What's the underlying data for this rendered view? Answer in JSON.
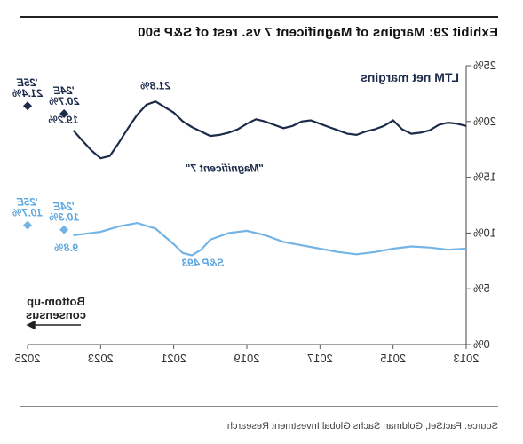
{
  "exhibit_title": "Exhibit 29: Margins of Magnificent 7 vs. rest of S&P 500",
  "chart": {
    "type": "line",
    "title": "LTM net margins",
    "title_fontsize": 14,
    "background_color": "#ffffff",
    "axis_color": "#444444",
    "y": {
      "min": 0,
      "max": 25,
      "tick_step": 5,
      "ticks": [
        "0%",
        "5%",
        "10%",
        "15%",
        "20%",
        "25%"
      ],
      "label_fontsize": 13,
      "label_color": "#333333"
    },
    "x": {
      "min": 2013,
      "max": 2025,
      "tick_step": 2,
      "ticks": [
        2013,
        2015,
        2017,
        2019,
        2021,
        2023,
        2025
      ],
      "label_fontsize": 13,
      "label_color": "#333333"
    },
    "series": {
      "mag7": {
        "label": "\"Magnificent 7\"",
        "color": "#1c2b4a",
        "line_width": 2.2,
        "callout_end": "19.2%",
        "callout_peak": "21.8%",
        "estimates": [
          {
            "label_top": "'24E",
            "label_val": "20.7%",
            "x": 2024,
            "y": 20.7
          },
          {
            "label_top": "'25E",
            "label_val": "21.4%",
            "x": 2025,
            "y": 21.4
          }
        ],
        "points": [
          [
            2013.0,
            19.6
          ],
          [
            2013.25,
            19.8
          ],
          [
            2013.5,
            19.9
          ],
          [
            2013.75,
            19.7
          ],
          [
            2014.0,
            19.2
          ],
          [
            2014.25,
            19.0
          ],
          [
            2014.5,
            18.9
          ],
          [
            2014.75,
            19.3
          ],
          [
            2015.0,
            20.1
          ],
          [
            2015.25,
            19.6
          ],
          [
            2015.5,
            19.3
          ],
          [
            2015.75,
            19.1
          ],
          [
            2016.0,
            18.8
          ],
          [
            2016.25,
            18.9
          ],
          [
            2016.5,
            19.2
          ],
          [
            2016.75,
            19.5
          ],
          [
            2017.0,
            19.8
          ],
          [
            2017.25,
            20.1
          ],
          [
            2017.5,
            20.0
          ],
          [
            2017.75,
            19.6
          ],
          [
            2018.0,
            19.4
          ],
          [
            2018.25,
            19.7
          ],
          [
            2018.5,
            20.0
          ],
          [
            2018.75,
            20.2
          ],
          [
            2019.0,
            19.8
          ],
          [
            2019.25,
            19.3
          ],
          [
            2019.5,
            19.0
          ],
          [
            2019.75,
            18.8
          ],
          [
            2020.0,
            18.7
          ],
          [
            2020.25,
            19.1
          ],
          [
            2020.5,
            19.5
          ],
          [
            2020.75,
            20.0
          ],
          [
            2021.0,
            20.8
          ],
          [
            2021.25,
            21.3
          ],
          [
            2021.5,
            21.8
          ],
          [
            2021.75,
            21.5
          ],
          [
            2022.0,
            20.6
          ],
          [
            2022.25,
            19.4
          ],
          [
            2022.5,
            18.1
          ],
          [
            2022.75,
            16.9
          ],
          [
            2023.0,
            16.7
          ],
          [
            2023.25,
            17.4
          ],
          [
            2023.5,
            18.3
          ],
          [
            2023.75,
            19.2
          ]
        ]
      },
      "sp493": {
        "label": "S&P 493",
        "color": "#73b4e6",
        "line_width": 2.2,
        "callout_end": "9.8%",
        "estimates": [
          {
            "label_top": "'24E",
            "label_val": "10.3%",
            "x": 2024,
            "y": 10.3
          },
          {
            "label_top": "'25E",
            "label_val": "10.7%",
            "x": 2025,
            "y": 10.7
          }
        ],
        "points": [
          [
            2013.0,
            8.6
          ],
          [
            2013.5,
            8.5
          ],
          [
            2014.0,
            8.7
          ],
          [
            2014.5,
            8.8
          ],
          [
            2015.0,
            8.6
          ],
          [
            2015.5,
            8.3
          ],
          [
            2016.0,
            8.1
          ],
          [
            2016.5,
            8.3
          ],
          [
            2017.0,
            8.6
          ],
          [
            2017.5,
            8.9
          ],
          [
            2018.0,
            9.2
          ],
          [
            2018.5,
            9.8
          ],
          [
            2019.0,
            10.2
          ],
          [
            2019.5,
            10.0
          ],
          [
            2020.0,
            9.4
          ],
          [
            2020.25,
            8.5
          ],
          [
            2020.5,
            8.0
          ],
          [
            2020.75,
            8.2
          ],
          [
            2021.0,
            9.0
          ],
          [
            2021.5,
            10.4
          ],
          [
            2022.0,
            10.9
          ],
          [
            2022.5,
            10.6
          ],
          [
            2023.0,
            10.1
          ],
          [
            2023.5,
            9.9
          ],
          [
            2023.75,
            9.8
          ]
        ]
      }
    },
    "consensus_label": {
      "line1": "Bottom-up",
      "line2": "consensus"
    }
  },
  "source": "Source: FactSet, Goldman Sachs Global Investment Research"
}
